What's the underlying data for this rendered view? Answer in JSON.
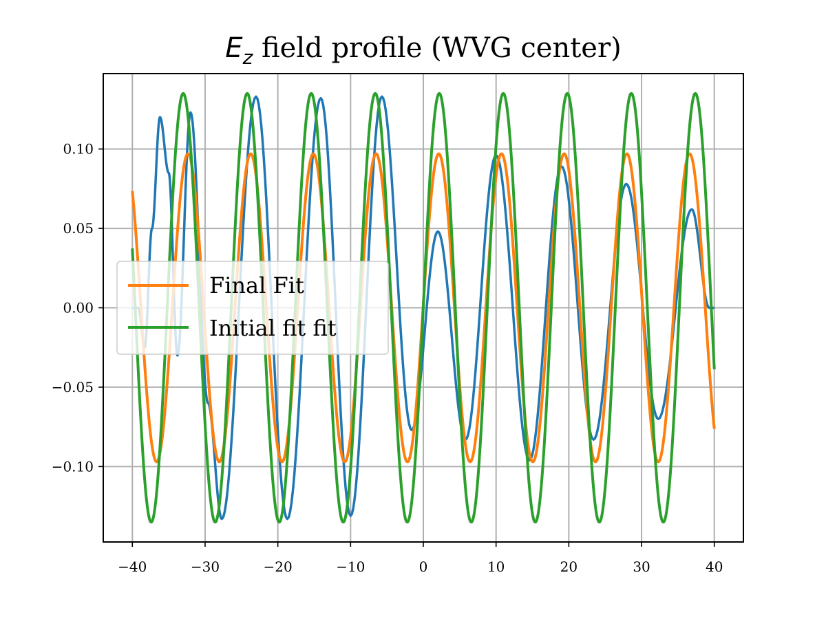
{
  "chart_data": {
    "type": "line",
    "title_math": "E",
    "title_sub": "z",
    "title_rest": " field profile (WVG center)",
    "xlabel": "",
    "ylabel": "",
    "xlim": [
      -44,
      44
    ],
    "ylim": [
      -0.1475,
      0.1475
    ],
    "xticks": [
      -40,
      -30,
      -20,
      -10,
      0,
      10,
      20,
      30,
      40
    ],
    "xtick_labels": [
      "−40",
      "−30",
      "−20",
      "−10",
      "0",
      "10",
      "20",
      "30",
      "40"
    ],
    "yticks": [
      -0.1,
      -0.05,
      0.0,
      0.05,
      0.1
    ],
    "ytick_labels": [
      "−0.10",
      "−0.05",
      "0.00",
      "0.05",
      "0.10"
    ],
    "grid": true,
    "legend_position": "center-left",
    "series": [
      {
        "name": "",
        "color": "#1f77b4",
        "points": [
          [
            -40,
            0.0
          ],
          [
            -39.2,
            0.0
          ],
          [
            -38.3,
            -0.025
          ],
          [
            -37.3,
            0.05
          ],
          [
            -36.2,
            0.12
          ],
          [
            -35.0,
            0.085
          ],
          [
            -33.8,
            -0.03
          ],
          [
            -32.0,
            0.123
          ],
          [
            -29.6,
            -0.06
          ],
          [
            -27.7,
            -0.133
          ],
          [
            -23.0,
            0.133
          ],
          [
            -18.7,
            -0.133
          ],
          [
            -14.1,
            0.132
          ],
          [
            -10.0,
            -0.131
          ],
          [
            -5.7,
            0.133
          ],
          [
            -1.6,
            -0.077
          ],
          [
            2.0,
            0.048
          ],
          [
            5.8,
            -0.083
          ],
          [
            10.0,
            0.096
          ],
          [
            14.6,
            -0.096
          ],
          [
            19.0,
            0.089
          ],
          [
            23.4,
            -0.083
          ],
          [
            27.9,
            0.078
          ],
          [
            32.3,
            -0.07
          ],
          [
            36.9,
            0.062
          ],
          [
            39.3,
            0.0
          ],
          [
            40,
            0.0
          ]
        ]
      },
      {
        "name": "Final Fit",
        "color": "#ff7f0e",
        "function": "sine",
        "amplitude": 0.097,
        "period": 8.62,
        "phase_deg": 1.3,
        "x_range": [
          -40,
          40
        ]
      },
      {
        "name": "Initial fit fit",
        "color": "#2ca02c",
        "function": "sine",
        "amplitude": 0.135,
        "period": 8.8,
        "phase_deg": 0.3,
        "x_range": [
          -40,
          40
        ]
      }
    ]
  }
}
